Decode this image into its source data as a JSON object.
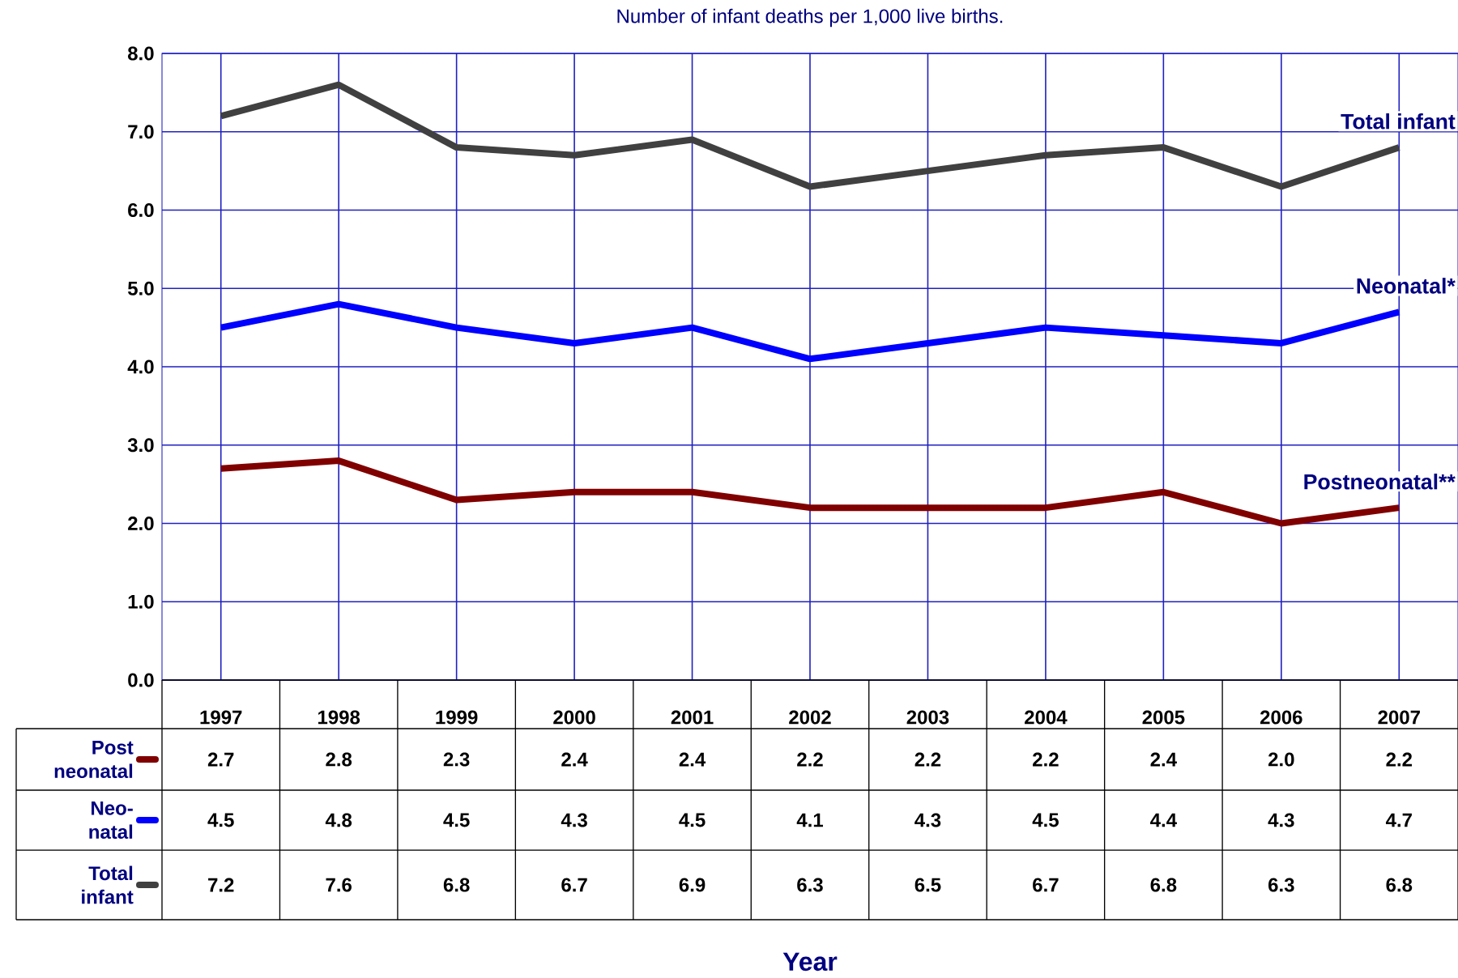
{
  "chart_data": {
    "type": "line",
    "title": "Number of infant deaths per 1,000 live births.",
    "categories": [
      "1997",
      "1998",
      "1999",
      "2000",
      "2001",
      "2002",
      "2003",
      "2004",
      "2005",
      "2006",
      "2007"
    ],
    "series": [
      {
        "name": "Postneonatal**",
        "color": "#800000",
        "values": [
          2.7,
          2.8,
          2.3,
          2.4,
          2.4,
          2.2,
          2.2,
          2.2,
          2.4,
          2.0,
          2.2
        ],
        "value_labels": [
          "2.7",
          "2.8",
          "2.3",
          "2.4",
          "2.4",
          "2.2",
          "2.2",
          "2.2",
          "2.4",
          "2.0",
          "2.2"
        ]
      },
      {
        "name": "Neonatal*",
        "color": "#0000ff",
        "values": [
          4.5,
          4.8,
          4.5,
          4.3,
          4.5,
          4.1,
          4.3,
          4.5,
          4.4,
          4.3,
          4.7
        ],
        "value_labels": [
          "4.5",
          "4.8",
          "4.5",
          "4.3",
          "4.5",
          "4.1",
          "4.3",
          "4.5",
          "4.4",
          "4.3",
          "4.7"
        ]
      },
      {
        "name": "Total infant",
        "color": "#404040",
        "values": [
          7.2,
          7.6,
          6.8,
          6.7,
          6.9,
          6.3,
          6.5,
          6.7,
          6.8,
          6.3,
          6.8
        ],
        "value_labels": [
          "7.2",
          "7.6",
          "6.8",
          "6.7",
          "6.9",
          "6.3",
          "6.5",
          "6.7",
          "6.8",
          "6.3",
          "6.8"
        ]
      }
    ],
    "annotations": [
      "Post neonatal",
      "Neo- natal",
      "Total infant",
      "Year"
    ],
    "ylim": [
      0,
      8
    ],
    "yticks": [
      {
        "value": 0,
        "label": "0.0"
      },
      {
        "value": 1,
        "label": "1.0"
      },
      {
        "value": 2,
        "label": "2.0"
      },
      {
        "value": 3,
        "label": "3.0"
      },
      {
        "value": 4,
        "label": "4.0"
      },
      {
        "value": 5,
        "label": "5.0"
      },
      {
        "value": 6,
        "label": "6.0"
      },
      {
        "value": 7,
        "label": "7.0"
      },
      {
        "value": 8,
        "label": "8.0"
      }
    ],
    "grid": true,
    "legend": false,
    "marker": "none",
    "line_style": "solid"
  }
}
